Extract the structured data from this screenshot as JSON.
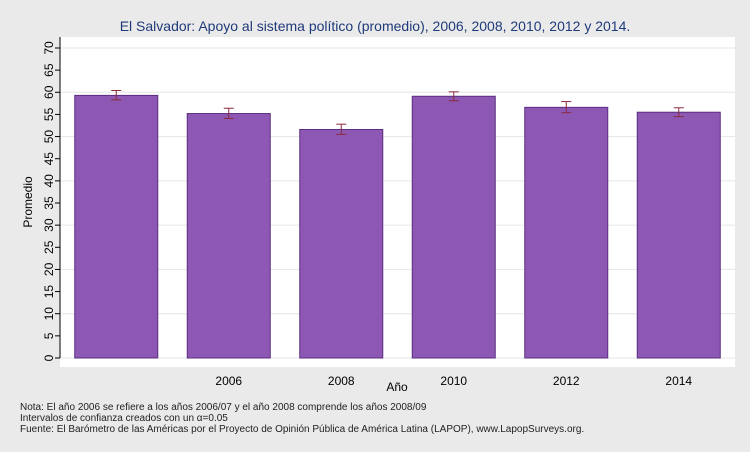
{
  "chart_data": {
    "type": "bar",
    "title": "El Salvador: Apoyo al sistema político (promedio), 2006, 2008, 2010, 2012 y 2014.",
    "xlabel": "Año",
    "ylabel": "Promedio",
    "ylim": [
      0,
      70
    ],
    "yticks": [
      "0",
      "5",
      "10",
      "15",
      "20",
      "25",
      "30",
      "35",
      "40",
      "45",
      "50",
      "55",
      "60",
      "65",
      "70"
    ],
    "categories": [
      "",
      "2006",
      "2008",
      "2010",
      "2012",
      "2014"
    ],
    "values": [
      59.3,
      55.2,
      51.6,
      59.1,
      56.6,
      55.5
    ],
    "ci_lower": [
      58.3,
      54.1,
      50.5,
      58.1,
      55.4,
      54.5
    ],
    "ci_upper": [
      60.4,
      56.4,
      52.8,
      60.1,
      57.9,
      56.5
    ],
    "bar_color": "#8c58b4",
    "bar_edge_color": "#5b2d80",
    "errorbar_color": "#8b2a3c",
    "grid": true,
    "legend": "none"
  },
  "notes": [
    "Nota: El año 2006 se refiere a los años 2006/07 y el año 2008 comprende los años 2008/09",
    "Intervalos de confianza creados con un α=0.05",
    "Fuente: El Barómetro de las Américas por el Proyecto de Opinión Pública de América Latina (LAPOP), www.LapopSurveys.org."
  ]
}
